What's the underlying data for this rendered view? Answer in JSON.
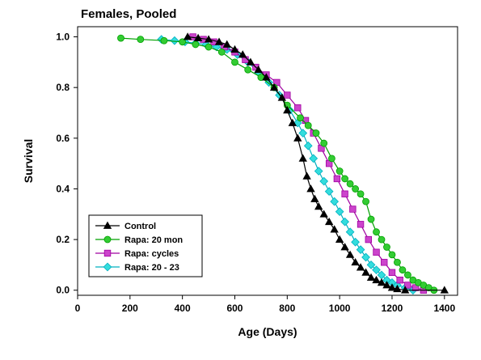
{
  "chart_data": {
    "type": "line",
    "title": "Females, Pooled",
    "xlabel": "Age (Days)",
    "ylabel": "Survival",
    "xlim": [
      0,
      1450
    ],
    "ylim": [
      -0.02,
      1.04
    ],
    "xticks": [
      0,
      200,
      400,
      600,
      800,
      1000,
      1200,
      1400
    ],
    "yticks": [
      0.0,
      0.2,
      0.4,
      0.6,
      0.8,
      1.0
    ],
    "ytick_labels": [
      "0.0",
      "0.2",
      "0.4",
      "0.6",
      "0.8",
      "1.0"
    ],
    "grid": false,
    "legend_position": "bottom-left",
    "series": [
      {
        "name": "Control",
        "color": "#000000",
        "marker_fill": "#000000",
        "marker": "triangle",
        "x": [
          420,
          460,
          500,
          540,
          570,
          600,
          630,
          660,
          690,
          720,
          750,
          780,
          800,
          820,
          840,
          860,
          875,
          890,
          905,
          920,
          940,
          960,
          980,
          1000,
          1020,
          1040,
          1060,
          1080,
          1100,
          1120,
          1140,
          1160,
          1180,
          1200,
          1220,
          1250,
          1400
        ],
        "y": [
          1.0,
          0.995,
          0.99,
          0.98,
          0.97,
          0.95,
          0.93,
          0.9,
          0.87,
          0.84,
          0.8,
          0.76,
          0.71,
          0.66,
          0.6,
          0.52,
          0.45,
          0.4,
          0.36,
          0.33,
          0.3,
          0.27,
          0.24,
          0.2,
          0.17,
          0.14,
          0.11,
          0.09,
          0.07,
          0.05,
          0.04,
          0.03,
          0.02,
          0.01,
          0.005,
          0.0,
          0.0
        ]
      },
      {
        "name": "Rapa: 20 mon",
        "color": "#00a000",
        "marker_fill": "#33cc33",
        "marker": "circle",
        "x": [
          165,
          240,
          330,
          400,
          450,
          500,
          550,
          600,
          650,
          700,
          750,
          800,
          850,
          880,
          910,
          940,
          970,
          1000,
          1020,
          1040,
          1060,
          1080,
          1100,
          1120,
          1140,
          1160,
          1180,
          1200,
          1220,
          1240,
          1260,
          1280,
          1300,
          1320,
          1340,
          1360
        ],
        "y": [
          0.995,
          0.99,
          0.985,
          0.98,
          0.97,
          0.96,
          0.94,
          0.9,
          0.87,
          0.84,
          0.8,
          0.73,
          0.68,
          0.65,
          0.62,
          0.58,
          0.52,
          0.47,
          0.44,
          0.42,
          0.4,
          0.38,
          0.35,
          0.28,
          0.23,
          0.2,
          0.17,
          0.14,
          0.11,
          0.08,
          0.06,
          0.04,
          0.03,
          0.02,
          0.01,
          0.0
        ]
      },
      {
        "name": "Rapa: cycles",
        "color": "#a000a0",
        "marker_fill": "#cc44cc",
        "marker": "square",
        "x": [
          440,
          480,
          520,
          560,
          600,
          640,
          680,
          720,
          760,
          800,
          840,
          870,
          900,
          930,
          960,
          990,
          1020,
          1050,
          1080,
          1110,
          1140,
          1170,
          1200,
          1230,
          1260,
          1290,
          1320
        ],
        "y": [
          1.0,
          0.99,
          0.98,
          0.96,
          0.94,
          0.91,
          0.88,
          0.85,
          0.82,
          0.77,
          0.72,
          0.67,
          0.62,
          0.56,
          0.5,
          0.44,
          0.38,
          0.32,
          0.26,
          0.2,
          0.15,
          0.11,
          0.07,
          0.04,
          0.02,
          0.01,
          0.0
        ]
      },
      {
        "name": "Rapa: 20 - 23",
        "color": "#00b0c0",
        "marker_fill": "#33dddd",
        "marker": "diamond",
        "x": [
          320,
          370,
          410,
          450,
          490,
          530,
          570,
          610,
          650,
          690,
          730,
          770,
          810,
          840,
          860,
          880,
          900,
          920,
          940,
          960,
          980,
          1000,
          1020,
          1040,
          1060,
          1080,
          1100,
          1120,
          1140,
          1160,
          1180,
          1200,
          1220,
          1250,
          1280
        ],
        "y": [
          0.99,
          0.985,
          0.98,
          0.975,
          0.97,
          0.96,
          0.95,
          0.93,
          0.9,
          0.86,
          0.82,
          0.77,
          0.71,
          0.66,
          0.62,
          0.57,
          0.52,
          0.47,
          0.43,
          0.39,
          0.35,
          0.31,
          0.27,
          0.23,
          0.19,
          0.16,
          0.13,
          0.1,
          0.08,
          0.06,
          0.04,
          0.03,
          0.02,
          0.01,
          0.0
        ]
      }
    ]
  }
}
